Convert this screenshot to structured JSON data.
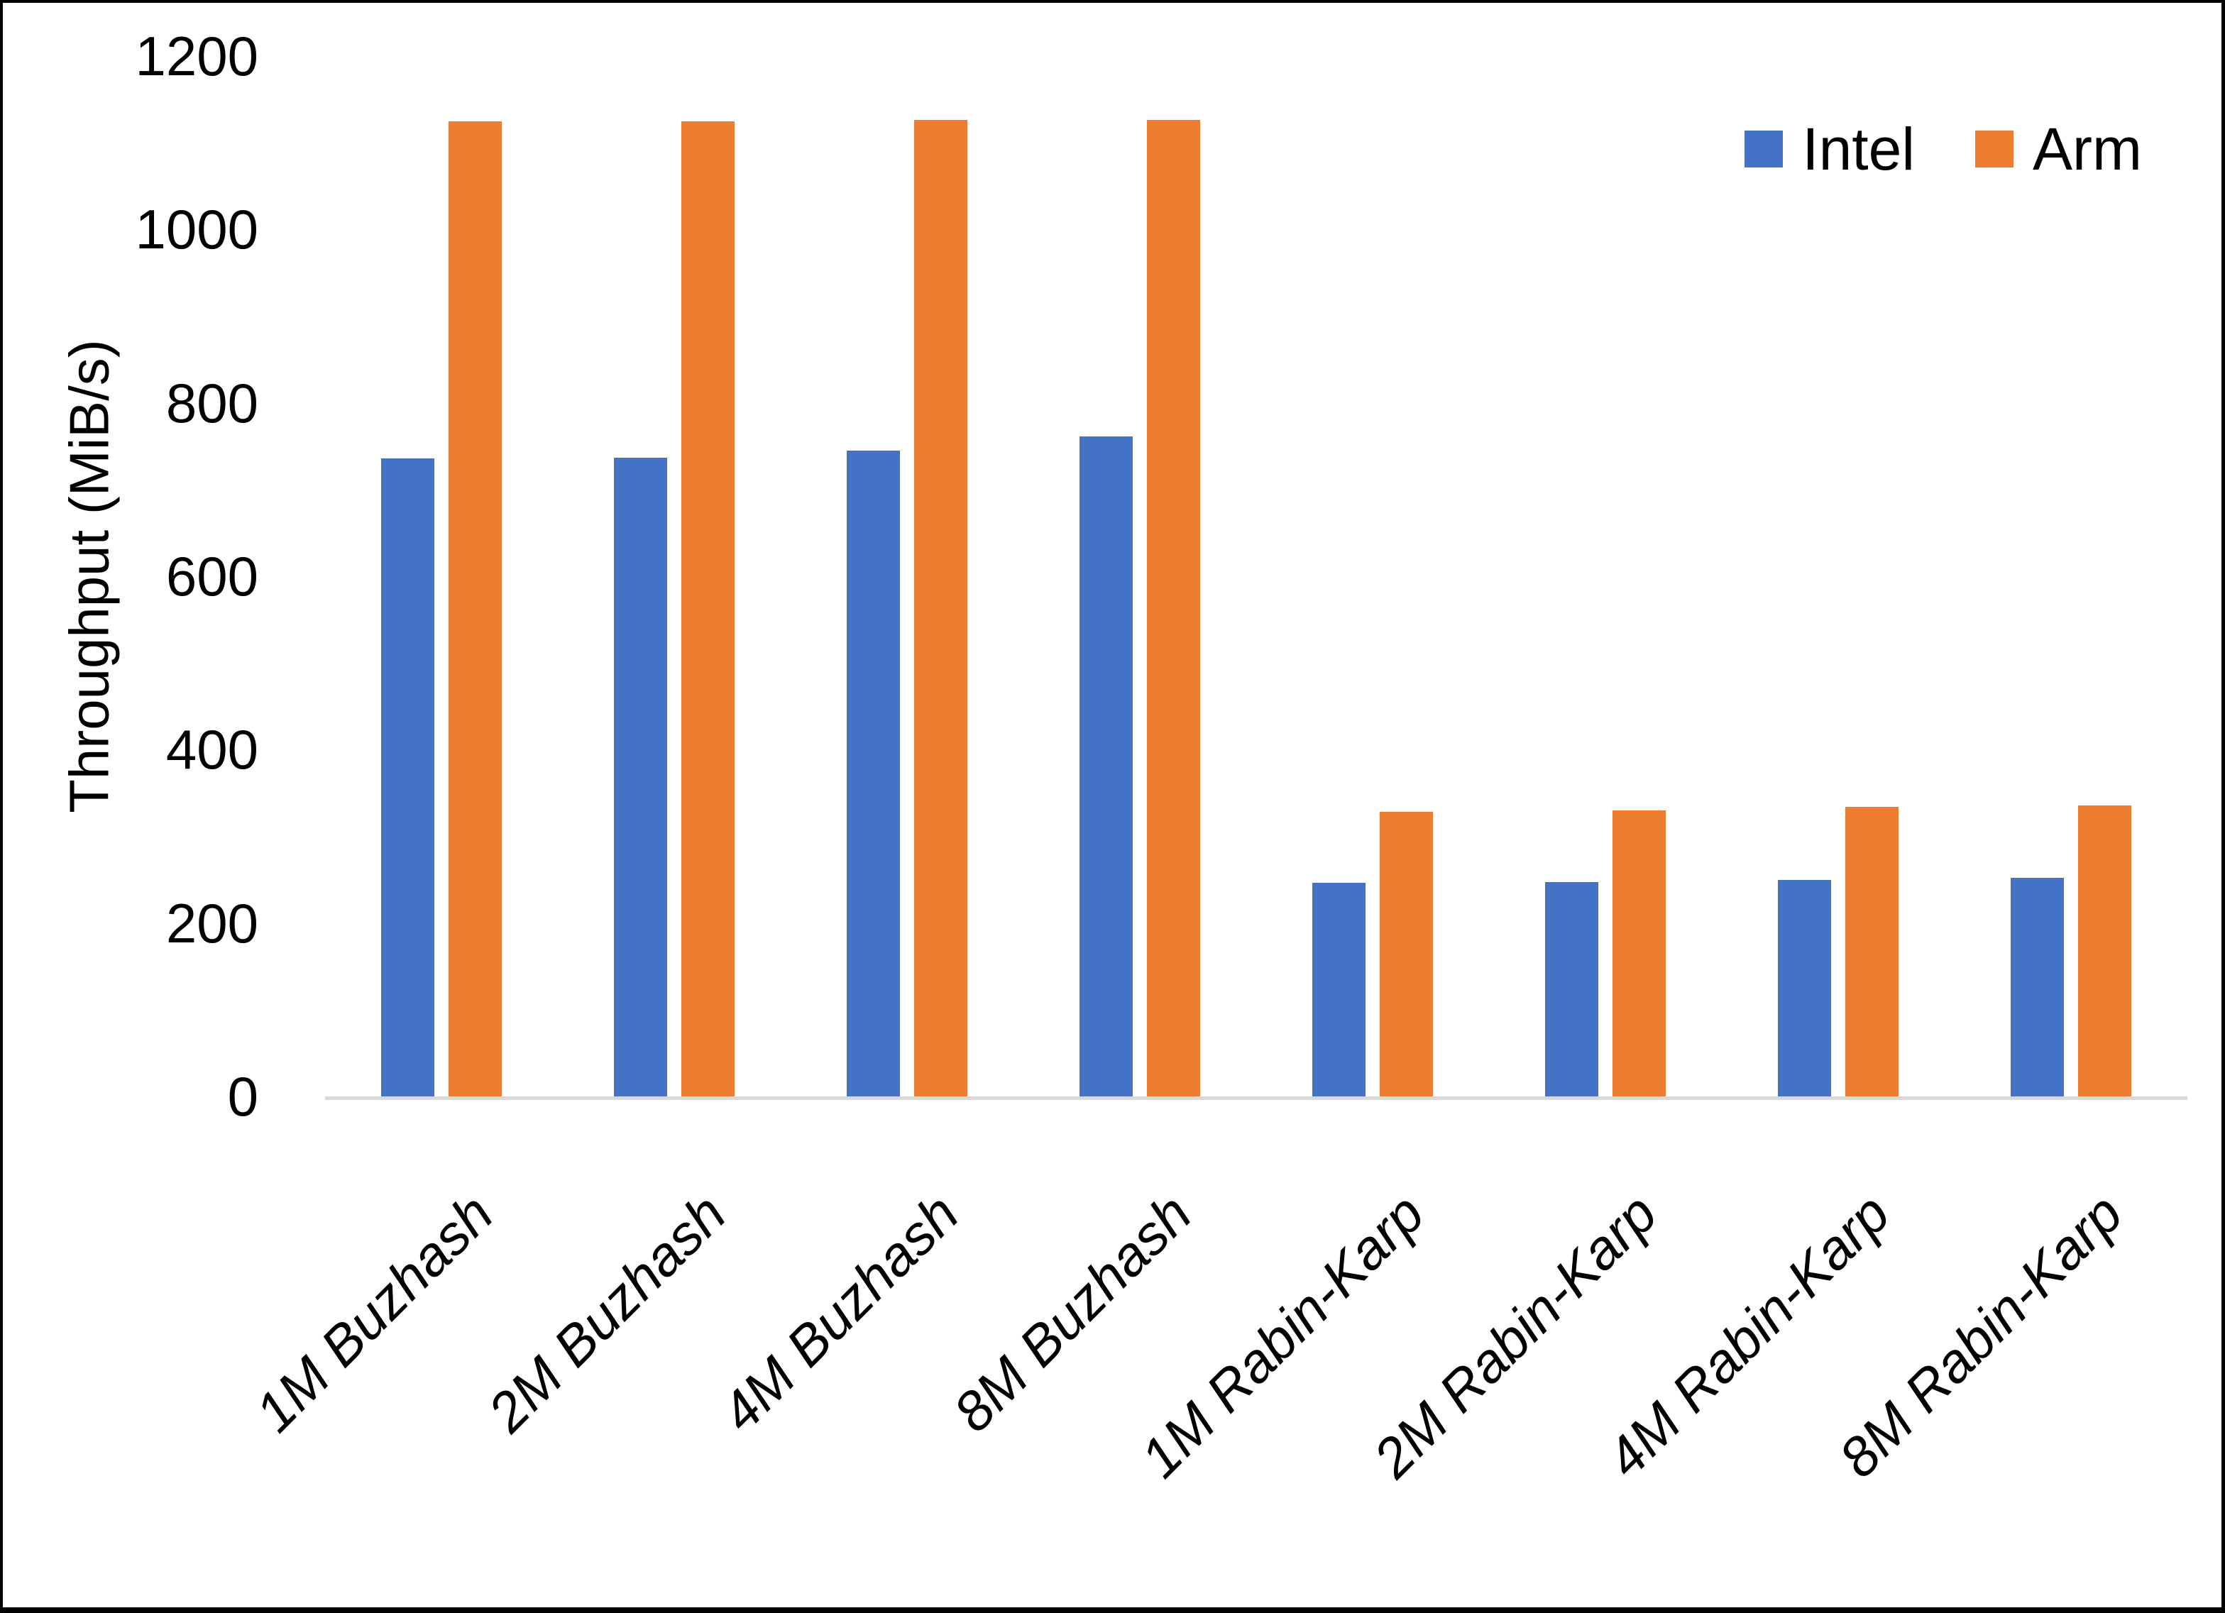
{
  "chart_data": {
    "type": "bar",
    "title": "",
    "xlabel": "",
    "ylabel": "Throughput (MiB/s)",
    "ylim": [
      0,
      1200
    ],
    "ytick_step": 200,
    "yticks": [
      0,
      200,
      400,
      600,
      800,
      1000,
      1200
    ],
    "grid": false,
    "legend_position": "top-right",
    "categories": [
      "1M Buzhash",
      "2M Buzhash",
      "4M Buzhash",
      "8M Buzhash",
      "1M Rabin-Karp",
      "2M Rabin-Karp",
      "4M Rabin-Karp",
      "8M Rabin-Karp"
    ],
    "series": [
      {
        "name": "Intel",
        "color": "#4472C4",
        "values": [
          736,
          737,
          745,
          761,
          246,
          247,
          250,
          252
        ]
      },
      {
        "name": "Arm",
        "color": "#ED7D31",
        "values": [
          1125,
          1125,
          1126,
          1126,
          328,
          330,
          334,
          336
        ]
      }
    ],
    "colors": {
      "axis_line": "#D9D9D9",
      "text": "#000000",
      "background": "#FFFFFF",
      "frame_border": "#000000"
    }
  }
}
